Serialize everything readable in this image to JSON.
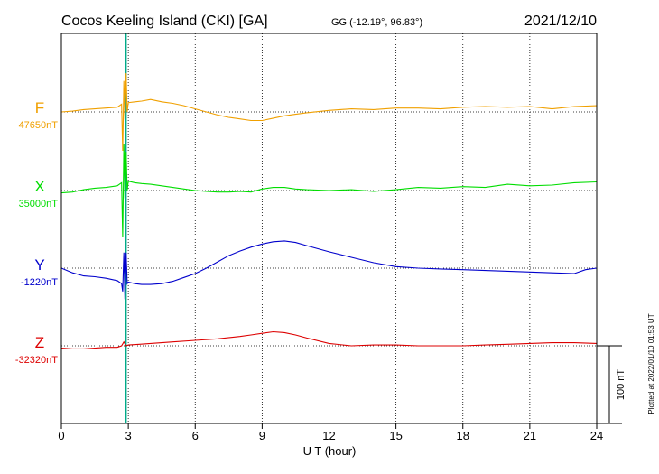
{
  "header": {
    "title": "Cocos Keeling Island (CKI)  [GA]",
    "coords": "GG (-12.19°,  96.83°)",
    "date": "2021/12/10"
  },
  "footer": {
    "plotted": "Plotted at 2022/01/10 01:53 UT"
  },
  "chart_data": {
    "type": "line",
    "xlabel": "U T (hour)",
    "xlim": [
      0,
      24
    ],
    "xticks": [
      0,
      3,
      6,
      9,
      12,
      15,
      18,
      21,
      24
    ],
    "xtick_labels": [
      "0",
      "3",
      "6",
      "9",
      "12",
      "15",
      "18",
      "21",
      "24"
    ],
    "grid": true,
    "scale_bar": {
      "value": 100,
      "label": "100 nT"
    },
    "series": [
      {
        "name": "F",
        "baseline_label": "47650nT",
        "baseline": 47650,
        "color": "#f0a000",
        "x": [
          0,
          0.5,
          1,
          1.5,
          2,
          2.5,
          2.7,
          2.75,
          2.8,
          2.85,
          2.9,
          2.95,
          3,
          3.3,
          3.6,
          4,
          4.5,
          5,
          5.5,
          6,
          6.5,
          7,
          7.5,
          8,
          8.5,
          9,
          9.5,
          10,
          10.5,
          11,
          12,
          13,
          14,
          15,
          16,
          17,
          18,
          19,
          20,
          21,
          22,
          23,
          24
        ],
        "y": [
          47650,
          47651,
          47653,
          47654,
          47655,
          47656,
          47660,
          47600,
          47690,
          47640,
          47700,
          47650,
          47662,
          47663,
          47664,
          47666,
          47663,
          47661,
          47658,
          47654,
          47650,
          47646,
          47643,
          47641,
          47639,
          47639,
          47642,
          47645,
          47647,
          47649,
          47652,
          47654,
          47653,
          47655,
          47655,
          47654,
          47656,
          47657,
          47656,
          47657,
          47654,
          47657,
          47658
        ]
      },
      {
        "name": "X",
        "baseline_label": "35000nT",
        "baseline": 35000,
        "color": "#00dd00",
        "x": [
          0,
          0.5,
          1,
          1.5,
          2,
          2.5,
          2.7,
          2.75,
          2.8,
          2.85,
          2.9,
          2.95,
          3,
          3.3,
          3.6,
          4,
          4.5,
          5,
          5.5,
          6,
          6.5,
          7,
          7.5,
          8,
          8.5,
          9,
          9.5,
          10,
          10.5,
          11,
          12,
          13,
          14,
          15,
          16,
          17,
          18,
          19,
          20,
          21,
          22,
          23,
          24
        ],
        "y": [
          34997,
          34998,
          35001,
          35003,
          35004,
          35006,
          35010,
          34940,
          35060,
          34990,
          35050,
          35000,
          35012,
          35010,
          35009,
          35008,
          35006,
          35004,
          35002,
          35000,
          34999,
          34998,
          34998,
          34999,
          34998,
          35002,
          35004,
          35004,
          35002,
          35001,
          35000,
          35001,
          34999,
          35001,
          35004,
          35003,
          35005,
          35004,
          35008,
          35006,
          35007,
          35010,
          35011
        ]
      },
      {
        "name": "Y",
        "baseline_label": "-1220nT",
        "baseline": -1220,
        "color": "#0000cc",
        "x": [
          0,
          0.5,
          1,
          1.5,
          2,
          2.5,
          2.7,
          2.75,
          2.8,
          2.85,
          2.9,
          2.95,
          3,
          3.3,
          3.6,
          4,
          4.5,
          5,
          5.5,
          6,
          6.5,
          7,
          7.5,
          8,
          8.5,
          9,
          9.5,
          10,
          10.5,
          11,
          12,
          13,
          14,
          15,
          16,
          17,
          18,
          19,
          20,
          21,
          22,
          23,
          23.5,
          24
        ],
        "y": [
          -1220,
          -1226,
          -1230,
          -1231,
          -1233,
          -1236,
          -1240,
          -1250,
          -1200,
          -1260,
          -1200,
          -1240,
          -1238,
          -1240,
          -1241,
          -1241,
          -1240,
          -1237,
          -1232,
          -1227,
          -1220,
          -1212,
          -1204,
          -1198,
          -1193,
          -1189,
          -1186,
          -1185,
          -1187,
          -1191,
          -1199,
          -1206,
          -1213,
          -1218,
          -1220,
          -1221,
          -1222,
          -1223,
          -1224,
          -1225,
          -1226,
          -1227,
          -1222,
          -1220
        ]
      },
      {
        "name": "Z",
        "baseline_label": "-32320nT",
        "baseline": -32320,
        "color": "#dd0000",
        "x": [
          0,
          0.5,
          1,
          1.5,
          2,
          2.5,
          2.7,
          2.8,
          2.9,
          3,
          3.5,
          4,
          5,
          6,
          7,
          8,
          8.5,
          9,
          9.5,
          10,
          10.5,
          11,
          12,
          13,
          14,
          15,
          16,
          17,
          18,
          19,
          20,
          21,
          22,
          23,
          24
        ],
        "y": [
          -32323,
          -32324,
          -32324,
          -32323,
          -32322,
          -32322,
          -32320,
          -32315,
          -32320,
          -32319,
          -32318,
          -32317,
          -32315,
          -32313,
          -32311,
          -32308,
          -32306,
          -32304,
          -32302,
          -32303,
          -32306,
          -32310,
          -32317,
          -32320,
          -32319,
          -32319,
          -32320,
          -32320,
          -32320,
          -32319,
          -32318,
          -32317,
          -32316,
          -32316,
          -32317
        ]
      }
    ],
    "annotations": [
      {
        "kind": "vertical_marker",
        "x": 2.9,
        "color": "#00aa88"
      }
    ]
  }
}
